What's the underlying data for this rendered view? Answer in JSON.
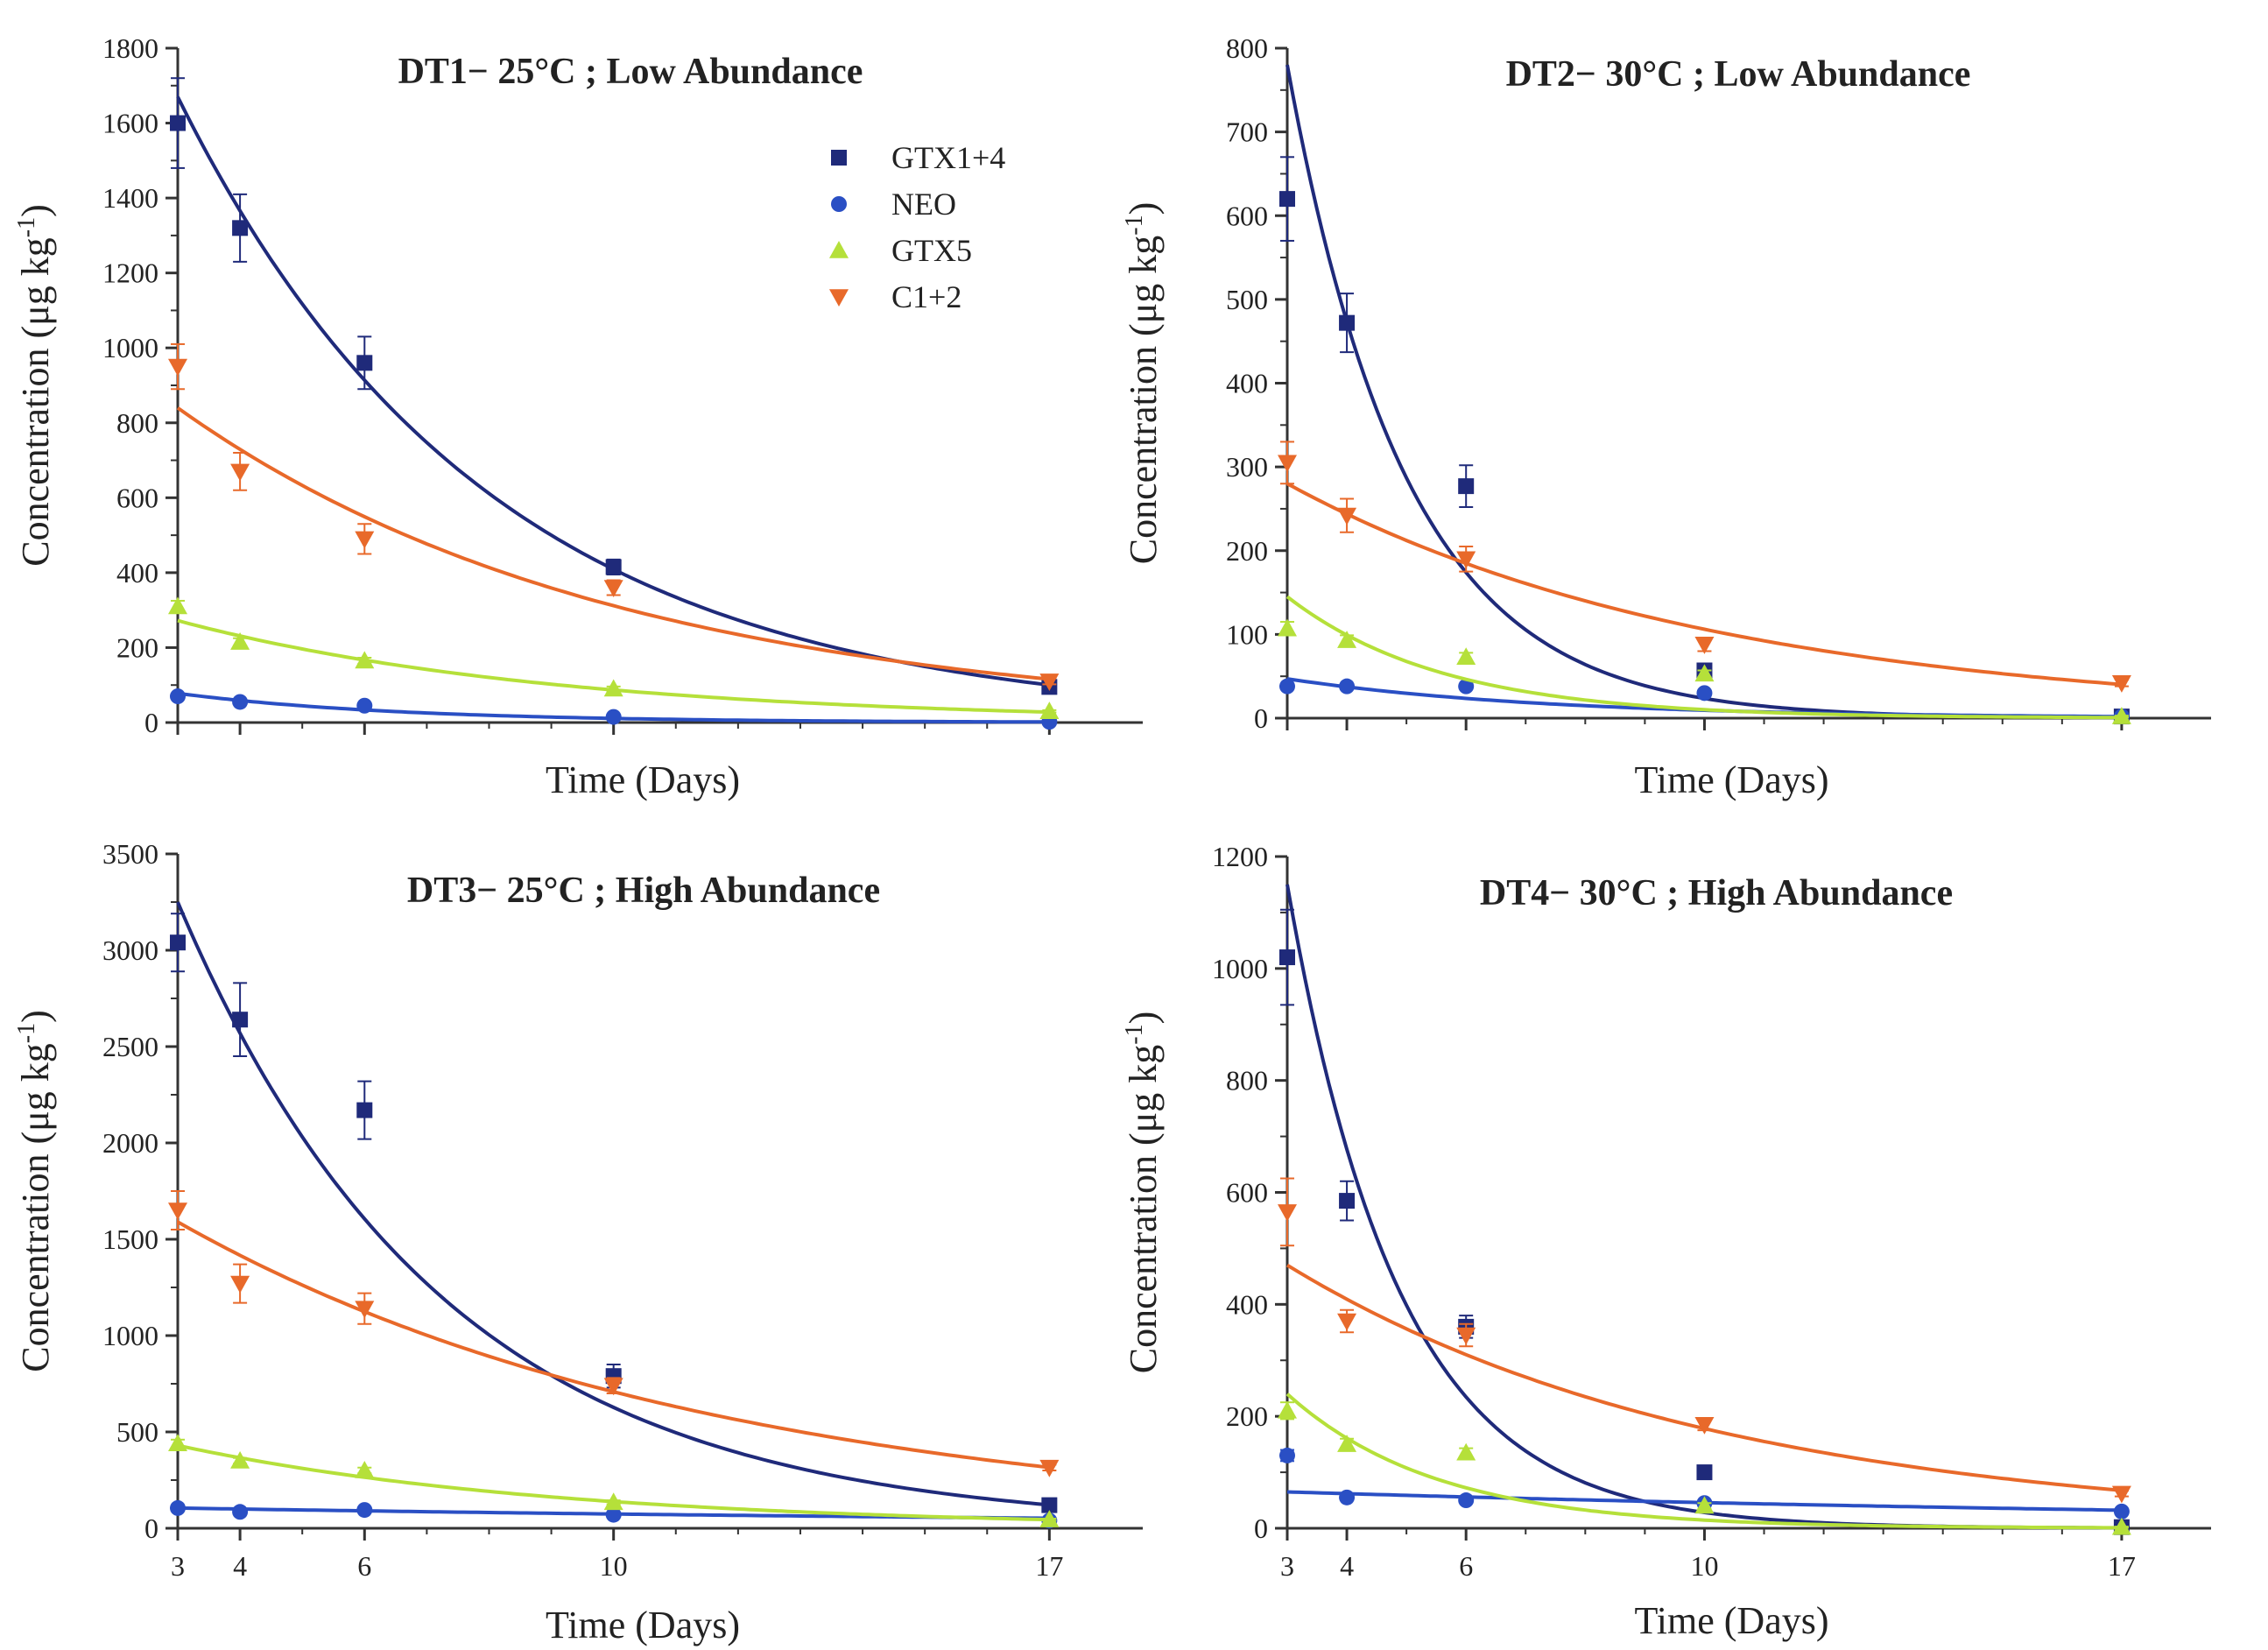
{
  "colors": {
    "GTX1+4": "#1f2a7a",
    "NEO": "#2a4fc4",
    "GTX5": "#b5e03a",
    "C1+2": "#e8692a"
  },
  "chart_data": [
    {
      "type": "scatter",
      "title": "DT1− 25°C ; Low Abundance",
      "xlabel": "Time  (Days)",
      "ylabel": "Concentration (μg kg",
      "ylabel_sup": "-1",
      "ylabel_close": ")",
      "x_ticks": [
        "",
        "",
        "",
        "",
        ""
      ],
      "x_tick_values": [
        3,
        4,
        6,
        10,
        17
      ],
      "y_ticks": [
        "0",
        "200",
        "400",
        "600",
        "800",
        "1000",
        "1200",
        "1400",
        "1600",
        "1800"
      ],
      "y_tick_values": [
        0,
        200,
        400,
        600,
        800,
        1000,
        1200,
        1400,
        1600,
        1800
      ],
      "xlim": [
        3,
        18.5
      ],
      "ylim": [
        0,
        1800
      ],
      "legend": {
        "placement": "top-center",
        "entries": [
          "GTX1+4",
          "NEO",
          "GTX5",
          "C1+2"
        ]
      },
      "series": [
        {
          "name": "GTX1+4",
          "marker": "square",
          "x": [
            3,
            4,
            6,
            10,
            17
          ],
          "y": [
            1600,
            1320,
            960,
            415,
            95
          ],
          "err": [
            120,
            90,
            70,
            20,
            8
          ],
          "fit": {
            "a": 1670,
            "b": 0.201
          }
        },
        {
          "name": "NEO",
          "marker": "circle",
          "x": [
            3,
            4,
            6,
            10,
            17
          ],
          "y": [
            70,
            55,
            45,
            15,
            2
          ],
          "err": [
            5,
            5,
            5,
            3,
            1
          ],
          "fit": {
            "a": 78,
            "b": 0.28
          }
        },
        {
          "name": "GTX5",
          "marker": "triangle-up",
          "x": [
            3,
            4,
            6,
            10,
            17
          ],
          "y": [
            310,
            215,
            165,
            90,
            30
          ],
          "err": [
            15,
            10,
            8,
            6,
            3
          ],
          "fit": {
            "a": 272,
            "b": 0.163
          }
        },
        {
          "name": "C1+2",
          "marker": "triangle-down",
          "x": [
            3,
            4,
            6,
            10,
            17
          ],
          "y": [
            950,
            670,
            490,
            360,
            110
          ],
          "err": [
            60,
            50,
            40,
            20,
            8
          ],
          "fit": {
            "a": 840,
            "b": 0.1416
          }
        }
      ]
    },
    {
      "type": "scatter",
      "title": "DT2− 30°C ; Low Abundance",
      "xlabel": "Time  (Days)",
      "ylabel": "Concentration (μg kg",
      "ylabel_sup": "-1",
      "ylabel_close": ")",
      "x_ticks": [
        "",
        "",
        "",
        "",
        ""
      ],
      "x_tick_values": [
        3,
        4,
        6,
        10,
        17
      ],
      "y_ticks": [
        "0",
        "100",
        "200",
        "300",
        "400",
        "500",
        "600",
        "700",
        "800"
      ],
      "y_tick_values": [
        0,
        100,
        200,
        300,
        400,
        500,
        600,
        700,
        800
      ],
      "xlim": [
        3,
        18.5
      ],
      "ylim": [
        0,
        800
      ],
      "series": [
        {
          "name": "GTX1+4",
          "marker": "square",
          "x": [
            3,
            4,
            6,
            10,
            17
          ],
          "y": [
            620,
            472,
            277,
            57,
            2
          ],
          "err": [
            50,
            35,
            25,
            8,
            1
          ],
          "fit": {
            "a": 780,
            "b": 0.5
          }
        },
        {
          "name": "NEO",
          "marker": "circle",
          "x": [
            3,
            4,
            6,
            10,
            17
          ],
          "y": [
            38,
            38,
            38,
            30,
            2
          ],
          "err": [
            3,
            3,
            3,
            3,
            1
          ],
          "fit": {
            "a": 47,
            "b": 0.23
          }
        },
        {
          "name": "GTX5",
          "marker": "triangle-up",
          "x": [
            3,
            4,
            6,
            10,
            17
          ],
          "y": [
            107,
            93,
            73,
            53,
            2
          ],
          "err": [
            8,
            6,
            5,
            4,
            1
          ],
          "fit": {
            "a": 145,
            "b": 0.38
          }
        },
        {
          "name": "C1+2",
          "marker": "triangle-down",
          "x": [
            3,
            4,
            6,
            10,
            17
          ],
          "y": [
            305,
            242,
            190,
            88,
            42
          ],
          "err": [
            25,
            20,
            15,
            8,
            4
          ],
          "fit": {
            "a": 280,
            "b": 0.1386
          }
        }
      ]
    },
    {
      "type": "scatter",
      "title": "DT3− 25°C ; High Abundance",
      "xlabel": "Time  (Days)",
      "ylabel": "Concentration (μg kg",
      "ylabel_sup": "-1",
      "ylabel_close": ")",
      "x_ticks": [
        "3",
        "4",
        "6",
        "10",
        "17"
      ],
      "x_tick_values": [
        3,
        4,
        6,
        10,
        17
      ],
      "y_ticks": [
        "0",
        "500",
        "1000",
        "1500",
        "2000",
        "2500",
        "3000",
        "3500"
      ],
      "y_tick_values": [
        0,
        500,
        1000,
        1500,
        2000,
        2500,
        3000,
        3500
      ],
      "xlim": [
        3,
        18.5
      ],
      "ylim": [
        0,
        3500
      ],
      "series": [
        {
          "name": "GTX1+4",
          "marker": "square",
          "x": [
            3,
            4,
            6,
            10,
            17
          ],
          "y": [
            3040,
            2640,
            2170,
            790,
            120
          ],
          "err": [
            150,
            190,
            150,
            60,
            15
          ],
          "fit": {
            "a": 3250,
            "b": 0.235
          }
        },
        {
          "name": "NEO",
          "marker": "circle",
          "x": [
            3,
            4,
            6,
            10,
            17
          ],
          "y": [
            105,
            85,
            95,
            70,
            40
          ],
          "err": [
            8,
            6,
            6,
            5,
            4
          ],
          "fit": {
            "a": 105,
            "b": 0.05
          }
        },
        {
          "name": "GTX5",
          "marker": "triangle-up",
          "x": [
            3,
            4,
            6,
            10,
            17
          ],
          "y": [
            440,
            350,
            300,
            135,
            45
          ],
          "err": [
            20,
            15,
            15,
            10,
            5
          ],
          "fit": {
            "a": 430,
            "b": 0.162
          }
        },
        {
          "name": "C1+2",
          "marker": "triangle-down",
          "x": [
            3,
            4,
            6,
            10,
            17
          ],
          "y": [
            1650,
            1270,
            1140,
            740,
            315
          ],
          "err": [
            100,
            100,
            80,
            40,
            15
          ],
          "fit": {
            "a": 1590,
            "b": 0.1155
          }
        }
      ]
    },
    {
      "type": "scatter",
      "title": "DT4− 30°C ; High Abundance",
      "xlabel": "Time  (Days)",
      "ylabel": "Concentration (μg kg",
      "ylabel_sup": "-1",
      "ylabel_close": ")",
      "x_ticks": [
        "3",
        "4",
        "6",
        "10",
        "17"
      ],
      "x_tick_values": [
        3,
        4,
        6,
        10,
        17
      ],
      "y_ticks": [
        "0",
        "200",
        "400",
        "600",
        "800",
        "1000",
        "1200"
      ],
      "y_tick_values": [
        0,
        200,
        400,
        600,
        800,
        1000,
        1200
      ],
      "xlim": [
        3,
        18.5
      ],
      "ylim": [
        0,
        1200
      ],
      "series": [
        {
          "name": "GTX1+4",
          "marker": "square",
          "x": [
            3,
            4,
            6,
            10,
            17
          ],
          "y": [
            1020,
            585,
            360,
            100,
            2
          ],
          "err": [
            85,
            35,
            20,
            8,
            1
          ],
          "fit": {
            "a": 1150,
            "b": 0.53
          }
        },
        {
          "name": "NEO",
          "marker": "circle",
          "x": [
            3,
            4,
            6,
            10,
            17
          ],
          "y": [
            130,
            55,
            50,
            45,
            30
          ],
          "err": [
            10,
            4,
            4,
            4,
            3
          ],
          "fit": {
            "a": 65,
            "b": 0.05
          }
        },
        {
          "name": "GTX5",
          "marker": "triangle-up",
          "x": [
            3,
            4,
            6,
            10,
            17
          ],
          "y": [
            210,
            150,
            135,
            40,
            2
          ],
          "err": [
            15,
            10,
            8,
            5,
            1
          ],
          "fit": {
            "a": 240,
            "b": 0.4
          }
        },
        {
          "name": "C1+2",
          "marker": "triangle-down",
          "x": [
            3,
            4,
            6,
            10,
            17
          ],
          "y": [
            565,
            370,
            345,
            185,
            62
          ],
          "err": [
            60,
            20,
            20,
            10,
            5
          ],
          "fit": {
            "a": 470,
            "b": 0.1386
          }
        }
      ]
    }
  ]
}
